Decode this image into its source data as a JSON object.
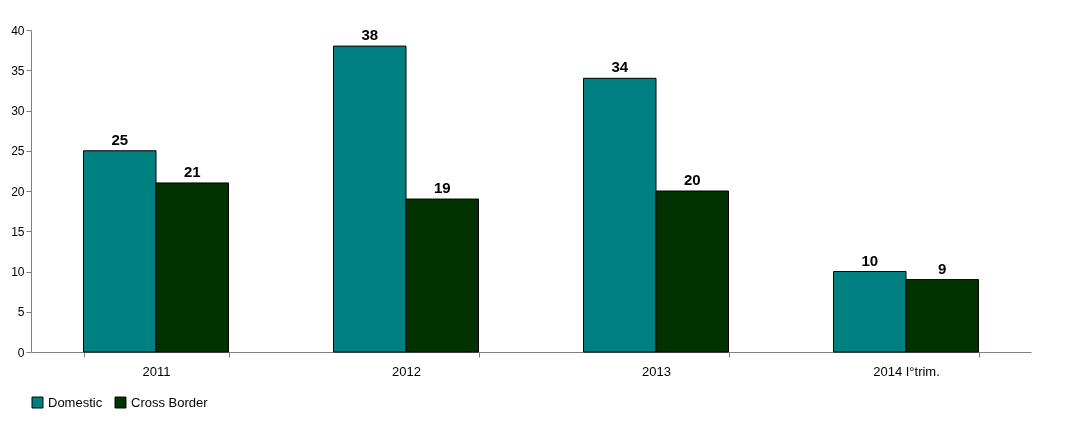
{
  "chart_data": {
    "type": "bar",
    "categories": [
      "2011",
      "2012",
      "2013",
      "2014 I°trim."
    ],
    "series": [
      {
        "name": "Domestic",
        "color": "#008080",
        "values": [
          25,
          38,
          34,
          10
        ]
      },
      {
        "name": "Cross Border",
        "color": "#003300",
        "values": [
          21,
          19,
          20,
          9
        ]
      }
    ],
    "ylim": [
      0,
      40
    ],
    "yticks": [
      0,
      5,
      10,
      15,
      20,
      25,
      30,
      35,
      40
    ],
    "grid": false,
    "legend": "bottom",
    "data_labels": true
  }
}
